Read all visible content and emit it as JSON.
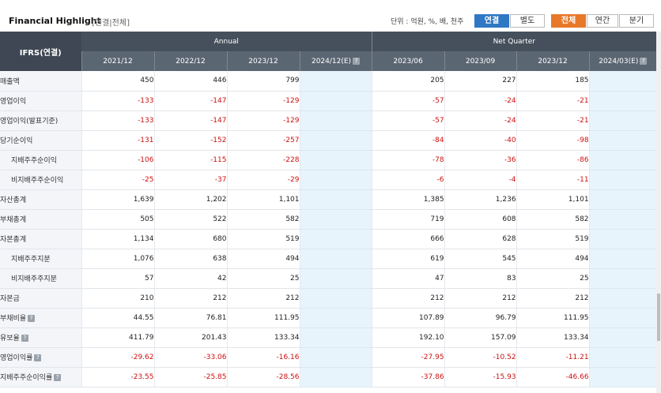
{
  "header": {
    "title": "Financial Highlight",
    "subtitle": "[연결|전체]",
    "unit": "단위 : 억원, %, 배, 천주",
    "scope_buttons": [
      "연결",
      "별도"
    ],
    "period_buttons": [
      "전체",
      "연간",
      "분기"
    ]
  },
  "table": {
    "corner_label": "IFRS(연결)",
    "group_annual": "Annual",
    "group_quarter": "Net Quarter",
    "columns": [
      "2021/12",
      "2022/12",
      "2023/12",
      "2024/12(E)",
      "2023/06",
      "2023/09",
      "2023/12",
      "2024/03(E)"
    ],
    "rows": [
      {
        "label": "매출액",
        "values": [
          "450",
          "446",
          "799",
          "",
          "205",
          "227",
          "185",
          ""
        ]
      },
      {
        "label": "영업이익",
        "values": [
          "-133",
          "-147",
          "-129",
          "",
          "-57",
          "-24",
          "-21",
          ""
        ]
      },
      {
        "label": "영업이익(발표기준)",
        "values": [
          "-133",
          "-147",
          "-129",
          "",
          "-57",
          "-24",
          "-21",
          ""
        ]
      },
      {
        "label": "당기순이익",
        "values": [
          "-131",
          "-152",
          "-257",
          "",
          "-84",
          "-40",
          "-98",
          ""
        ]
      },
      {
        "label": "지배주주순이익",
        "sub": true,
        "values": [
          "-106",
          "-115",
          "-228",
          "",
          "-78",
          "-36",
          "-86",
          ""
        ]
      },
      {
        "label": "비지배주주순이익",
        "sub": true,
        "values": [
          "-25",
          "-37",
          "-29",
          "",
          "-6",
          "-4",
          "-11",
          ""
        ]
      },
      {
        "label": "자산총계",
        "values": [
          "1,639",
          "1,202",
          "1,101",
          "",
          "1,385",
          "1,236",
          "1,101",
          ""
        ]
      },
      {
        "label": "부채총계",
        "values": [
          "505",
          "522",
          "582",
          "",
          "719",
          "608",
          "582",
          ""
        ]
      },
      {
        "label": "자본총계",
        "values": [
          "1,134",
          "680",
          "519",
          "",
          "666",
          "628",
          "519",
          ""
        ]
      },
      {
        "label": "지배주주지분",
        "sub": true,
        "values": [
          "1,076",
          "638",
          "494",
          "",
          "619",
          "545",
          "494",
          ""
        ]
      },
      {
        "label": "비지배주주지분",
        "sub": true,
        "values": [
          "57",
          "42",
          "25",
          "",
          "47",
          "83",
          "25",
          ""
        ]
      },
      {
        "label": "자본금",
        "values": [
          "210",
          "212",
          "212",
          "",
          "212",
          "212",
          "212",
          ""
        ]
      },
      {
        "label": "부채비율",
        "help": true,
        "values": [
          "44.55",
          "76.81",
          "111.95",
          "",
          "107.89",
          "96.79",
          "111.95",
          ""
        ]
      },
      {
        "label": "유보율",
        "help": true,
        "values": [
          "411.79",
          "201.43",
          "133.34",
          "",
          "192.10",
          "157.09",
          "133.34",
          ""
        ]
      },
      {
        "label": "영업이익률",
        "help": true,
        "values": [
          "-29.62",
          "-33.06",
          "-16.16",
          "",
          "-27.95",
          "-10.52",
          "-11.21",
          ""
        ]
      },
      {
        "label": "지배주주순이익률",
        "help": true,
        "values": [
          "-23.55",
          "-25.85",
          "-28.56",
          "",
          "-37.86",
          "-15.93",
          "-46.66",
          ""
        ]
      }
    ]
  }
}
